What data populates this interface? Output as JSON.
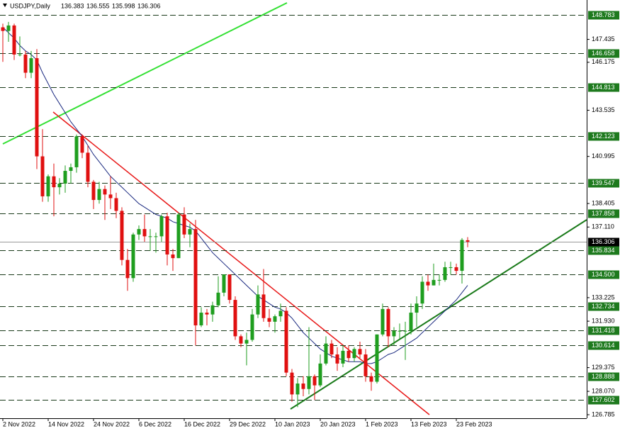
{
  "chart_data": {
    "type": "candlestick",
    "title": "USDJPY,Daily",
    "categories": [
      "2 Nov 2022",
      null,
      null,
      null,
      null,
      null,
      null,
      null,
      "14 Nov 2022",
      null,
      null,
      null,
      null,
      null,
      null,
      null,
      "24 Nov 2022",
      null,
      null,
      null,
      null,
      null,
      null,
      null,
      "6 Dec 2022",
      null,
      null,
      null,
      null,
      null,
      null,
      null,
      "16 Dec 2022",
      null,
      null,
      null,
      null,
      null,
      null,
      null,
      "29 Dec 2022",
      null,
      null,
      null,
      null,
      null,
      null,
      null,
      "10 Jan 2023",
      null,
      null,
      null,
      null,
      null,
      null,
      null,
      "20 Jan 2023",
      null,
      null,
      null,
      null,
      null,
      null,
      null,
      "1 Feb 2023",
      null,
      null,
      null,
      null,
      null,
      null,
      null,
      "13 Feb 2023",
      null,
      null,
      null,
      null,
      null,
      null,
      null,
      "23 Feb 2023",
      null,
      null
    ],
    "open": [
      148.1,
      147.9,
      148.2,
      146.6,
      146.6,
      145.6,
      146.4,
      141.0,
      138.8,
      139.9,
      139.3,
      139.5,
      140.2,
      140.4,
      142.1,
      141.2,
      139.6,
      138.6,
      139.2,
      138.9,
      138.7,
      138.0,
      135.3,
      134.3,
      136.7,
      137.0,
      136.6,
      136.6,
      136.6,
      137.7,
      135.6,
      135.4,
      137.8,
      136.7,
      137.0,
      131.7,
      132.4,
      132.3,
      132.8,
      133.5,
      134.5,
      133.1,
      131.1,
      130.7,
      130.9,
      132.3,
      133.4,
      132.1,
      131.9,
      132.2,
      132.5,
      129.1,
      127.9,
      128.5,
      128.2,
      128.9,
      128.4,
      129.6,
      130.7,
      130.1,
      129.6,
      130.3,
      129.9,
      130.4,
      130.1,
      128.9,
      128.6,
      131.2,
      132.6,
      131.1,
      131.4,
      131.4,
      131.4,
      132.4,
      132.9,
      134.1,
      133.9,
      134.2,
      134.2,
      134.9,
      134.9,
      134.7,
      136.383
    ],
    "high": [
      148.3,
      148.4,
      148.3,
      147.6,
      146.8,
      146.8,
      146.9,
      142.5,
      140.0,
      140.6,
      139.8,
      140.5,
      140.6,
      142.2,
      142.2,
      141.6,
      139.7,
      139.6,
      139.4,
      139.9,
      139.0,
      138.2,
      135.9,
      136.8,
      137.2,
      137.8,
      137.0,
      136.8,
      137.8,
      137.9,
      135.9,
      137.9,
      138.2,
      137.3,
      137.5,
      132.7,
      132.6,
      133.0,
      134.4,
      134.5,
      134.5,
      133.3,
      131.2,
      131.3,
      132.6,
      133.9,
      134.8,
      132.6,
      132.3,
      132.9,
      132.7,
      129.3,
      128.8,
      128.9,
      131.6,
      129.0,
      130.1,
      131.1,
      130.9,
      130.5,
      130.6,
      130.6,
      130.5,
      130.8,
      130.4,
      129.1,
      131.2,
      132.9,
      132.7,
      131.6,
      131.8,
      131.9,
      132.9,
      133.3,
      134.4,
      134.5,
      135.1,
      134.5,
      135.2,
      135.2,
      135.1,
      136.5,
      136.555
    ],
    "low": [
      146.2,
      147.3,
      146.3,
      146.5,
      145.3,
      145.3,
      140.3,
      138.5,
      138.5,
      137.7,
      138.9,
      139.0,
      139.5,
      140.1,
      140.9,
      139.3,
      138.1,
      138.4,
      137.5,
      138.1,
      137.6,
      135.0,
      133.6,
      134.1,
      136.4,
      136.3,
      135.8,
      135.7,
      136.3,
      135.0,
      134.7,
      135.4,
      136.5,
      136.0,
      130.6,
      131.6,
      131.7,
      131.9,
      132.7,
      133.3,
      132.9,
      130.9,
      130.5,
      129.5,
      130.8,
      132.1,
      131.9,
      131.6,
      131.3,
      131.9,
      128.9,
      127.5,
      127.2,
      127.8,
      127.9,
      127.6,
      128.3,
      129.5,
      129.9,
      129.2,
      129.4,
      129.7,
      129.7,
      129.9,
      128.6,
      128.1,
      128.5,
      131.1,
      130.5,
      130.6,
      130.9,
      129.8,
      131.2,
      131.6,
      132.6,
      133.6,
      133.9,
      133.9,
      134.1,
      134.5,
      134.5,
      134.0,
      135.998
    ],
    "close": [
      147.9,
      148.2,
      146.6,
      146.6,
      145.6,
      146.4,
      141.0,
      138.8,
      139.9,
      139.3,
      139.5,
      140.2,
      140.4,
      142.1,
      141.2,
      139.6,
      138.6,
      139.2,
      138.9,
      138.7,
      138.0,
      135.3,
      134.3,
      136.7,
      137.0,
      136.6,
      136.6,
      136.6,
      137.7,
      135.6,
      135.4,
      137.8,
      136.7,
      137.0,
      131.7,
      132.4,
      132.3,
      132.8,
      133.5,
      134.5,
      133.1,
      131.1,
      130.7,
      130.9,
      132.3,
      133.4,
      132.1,
      131.9,
      132.2,
      132.5,
      129.1,
      127.9,
      128.5,
      128.2,
      128.9,
      128.4,
      129.6,
      130.7,
      130.1,
      129.6,
      130.3,
      129.9,
      130.4,
      130.1,
      128.9,
      128.6,
      131.2,
      132.6,
      131.1,
      131.4,
      131.4,
      131.4,
      132.4,
      132.9,
      134.1,
      133.9,
      134.2,
      134.2,
      134.9,
      134.9,
      134.7,
      136.4,
      136.306
    ],
    "up_color": "#1f9e1f",
    "down_color": "#e01010",
    "ma": {
      "color": "#1b2a80",
      "values": [
        148.1,
        147.8,
        147.5,
        147.1,
        146.8,
        146.6,
        146.3,
        145.6,
        145.0,
        144.4,
        143.9,
        143.4,
        142.9,
        142.5,
        142.1,
        141.6,
        141.1,
        140.7,
        140.3,
        139.9,
        139.6,
        139.3,
        139.0,
        138.7,
        138.4,
        138.2,
        138.0,
        137.8,
        137.7,
        137.6,
        137.4,
        137.3,
        137.2,
        137.1,
        136.9,
        136.5,
        136.1,
        135.7,
        135.4,
        135.1,
        134.8,
        134.5,
        134.2,
        133.9,
        133.6,
        133.3,
        133.1,
        132.9,
        132.7,
        132.6,
        132.4,
        132.1,
        131.7,
        131.3,
        131.0,
        130.7,
        130.4,
        130.2,
        130.0,
        129.9,
        129.8,
        129.7,
        129.7,
        129.7,
        129.6,
        129.6,
        129.7,
        129.9,
        130.1,
        130.2,
        130.4,
        130.6,
        130.8,
        131.0,
        131.3,
        131.6,
        131.9,
        132.2,
        132.5,
        132.8,
        133.1,
        133.5,
        133.9
      ]
    },
    "levels": {
      "color": "#1e7a1e",
      "values": [
        148.783,
        146.658,
        144.813,
        142.123,
        139.547,
        137.858,
        135.834,
        {
          "value": 134.5,
          "label": "134.500"
        },
        132.734,
        131.418,
        130.614,
        128.888,
        127.602
      ]
    },
    "ylim": [
      126.59,
      149.602
    ],
    "yticks": [
      147.435,
      146.175,
      143.535,
      140.995,
      138.405,
      {
        "value": 137.11,
        "label": "137.110"
      },
      133.225,
      {
        "value": 131.93,
        "label": "131.930"
      },
      129.375,
      {
        "value": 128.07,
        "label": "128.070"
      },
      126.785
    ]
  }
}
